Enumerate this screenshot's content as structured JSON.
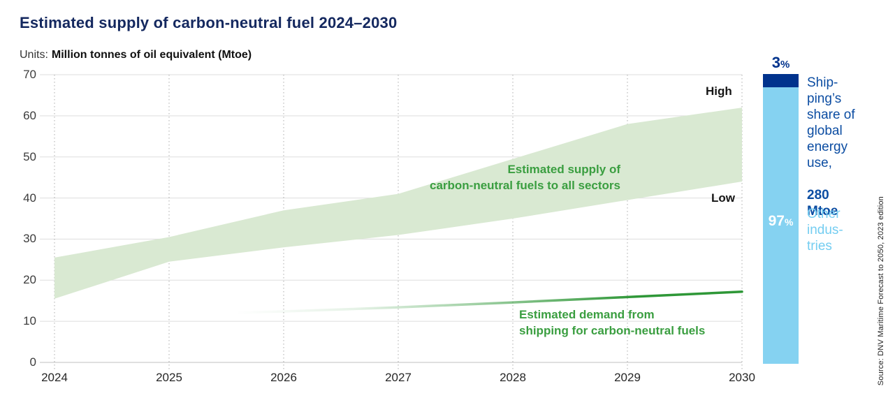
{
  "page_title": "Estimated supply of carbon-neutral fuel 2024–2030",
  "units_label": {
    "prefix": "Units:",
    "text": "Million tonnes of oil equivalent (Mtoe)"
  },
  "source_note": "Source: DNV Maritime Forecast to 2050, 2023 edition",
  "colors": {
    "title_navy": "#14285f",
    "band_green": "#d9e9d2",
    "line_green": "#2e9737",
    "annotation_green": "#3a9e40",
    "bar_dark_blue": "#00338d",
    "bar_light_blue": "#85d2f1",
    "side_text_blue": "#0c4da2",
    "other_text_blue": "#74cdf1",
    "gridline_gray": "#dddddd",
    "zero_line_gray": "#c2c2c2"
  },
  "chart_data": {
    "type": "area",
    "title": "Estimated supply of carbon-neutral fuel 2024–2030",
    "ylabel": "Million tonnes of oil equivalent (Mtoe)",
    "x": [
      2024,
      2025,
      2026,
      2027,
      2028,
      2029,
      2030
    ],
    "series": [
      {
        "name": "Estimated supply of carbon-neutral fuels to all sectors — High",
        "values": [
          25.5,
          30.5,
          37,
          41,
          49.5,
          58,
          62
        ]
      },
      {
        "name": "Estimated supply of carbon-neutral fuels to all sectors — Low",
        "values": [
          15.5,
          24.5,
          28,
          31,
          35,
          39.5,
          44
        ]
      },
      {
        "name": "Estimated demand from shipping for carbon-neutral fuels",
        "x": [
          2025.6,
          2026,
          2027,
          2028,
          2029,
          2030
        ],
        "values": [
          12.1,
          12.4,
          13.4,
          14.6,
          15.9,
          17.2
        ]
      }
    ],
    "ylim": [
      0,
      70
    ],
    "yticks": [
      0,
      10,
      20,
      30,
      40,
      50,
      60,
      70
    ],
    "xticks": [
      2024,
      2025,
      2026,
      2027,
      2028,
      2029,
      2030
    ],
    "grid": {
      "horizontal": "solid",
      "vertical": "dotted"
    },
    "legend_position": "none",
    "band_label": "Estimated supply of\ncarbon-neutral fuels to all sectors",
    "band_bounds_labels": {
      "high": "High",
      "low": "Low"
    },
    "line_label": "Estimated demand from\nshipping for carbon-neutral fuels"
  },
  "side_panel": {
    "type": "stacked-bar",
    "segments": [
      {
        "label": "3",
        "pct_sign": "%",
        "value_pct": 3,
        "color": "#00338d"
      },
      {
        "label": "97",
        "pct_sign": "%",
        "value_pct": 97,
        "color": "#85d2f1"
      }
    ],
    "shipping_text": "Ship-\nping’s\nshare of\nglobal\nenergy\nuse,",
    "shipping_bold": "280\nMtoe",
    "other_text": "Other\nindus-\ntries"
  }
}
